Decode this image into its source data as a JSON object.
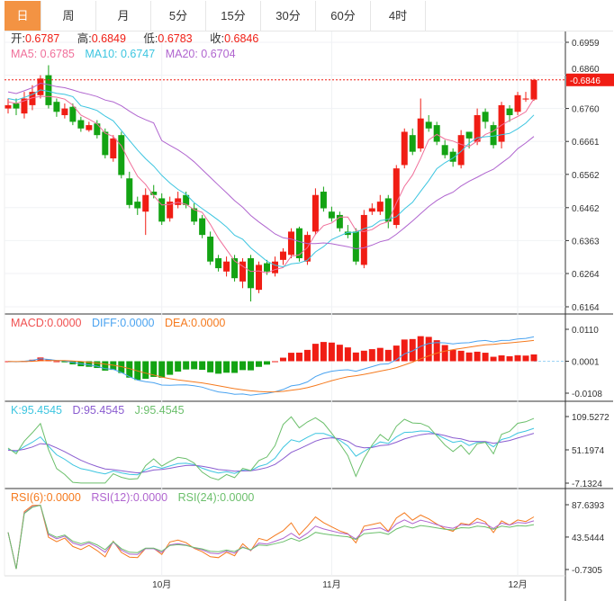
{
  "tabs": [
    "日",
    "周",
    "月",
    "5分",
    "15分",
    "30分",
    "60分",
    "4时"
  ],
  "active_tab": 0,
  "ohlc_legend": {
    "open_label": "开:",
    "open": "0.6787",
    "high_label": "高:",
    "high": "0.6849",
    "low_label": "低:",
    "low": "0.6783",
    "close_label": "收:",
    "close": "0.6846"
  },
  "ma_legend": {
    "ma5": "MA5: 0.6785",
    "ma10": "MA10: 0.6747",
    "ma20": "MA20: 0.6704"
  },
  "macd_legend": {
    "macd": "MACD:0.0000",
    "diff": "DIFF:0.0000",
    "dea": "DEA:0.0000"
  },
  "kdj_legend": {
    "k": "K:95.4545",
    "d": "D:95.4545",
    "j": "J:95.4545"
  },
  "rsi_legend": {
    "rsi6": "RSI(6):0.0000",
    "rsi12": "RSI(12):0.0000",
    "rsi24": "RSI(24):0.0000"
  },
  "colors": {
    "up": "#f01d14",
    "down": "#13a313",
    "ma5": "#f06f9a",
    "ma10": "#3cc5e0",
    "ma20": "#b065cf",
    "diff": "#4aa3f0",
    "dea": "#f57a1e",
    "k": "#3cc5e0",
    "d": "#8a5cd0",
    "j": "#6bbf6b",
    "rsi6": "#f57a1e",
    "rsi12": "#b065cf",
    "rsi24": "#6bbf6b",
    "accent": "#f39343"
  },
  "chart_data": {
    "type": "candlestick",
    "last_price": "0.6846",
    "price_ticks": [
      "0.6959",
      "0.6860",
      "0.6760",
      "0.6661",
      "0.6562",
      "0.6462",
      "0.6363",
      "0.6264",
      "0.6164"
    ],
    "price_range": [
      0.6164,
      0.6959
    ],
    "macd_ticks": [
      "0.0110",
      "0.0001",
      "-0.0108"
    ],
    "kdj_ticks": [
      "109.5272",
      "51.1974",
      "-7.1324"
    ],
    "rsi_ticks": [
      "87.6393",
      "43.5444",
      "-0.7305"
    ],
    "x_labels": [
      {
        "label": "10月",
        "index": 19
      },
      {
        "label": "11月",
        "index": 40
      },
      {
        "label": "12月",
        "index": 63
      }
    ],
    "open": [
      0.676,
      0.6775,
      0.6745,
      0.677,
      0.68,
      0.686,
      0.678,
      0.674,
      0.6765,
      0.6725,
      0.6695,
      0.6715,
      0.669,
      0.661,
      0.668,
      0.655,
      0.648,
      0.645,
      0.651,
      0.649,
      0.643,
      0.647,
      0.65,
      0.646,
      0.643,
      0.6375,
      0.631,
      0.627,
      0.631,
      0.624,
      0.631,
      0.6215,
      0.6295,
      0.6265,
      0.6305,
      0.632,
      0.64,
      0.63,
      0.639,
      0.651,
      0.645,
      0.644,
      0.639,
      0.639,
      0.629,
      0.645,
      0.645,
      0.649,
      0.641,
      0.659,
      0.668,
      0.664,
      0.672,
      0.671,
      0.665,
      0.663,
      0.659,
      0.669,
      0.666,
      0.675,
      0.671,
      0.666,
      0.676,
      0.675,
      0.6787,
      0.6787
    ],
    "close": [
      0.677,
      0.676,
      0.679,
      0.681,
      0.685,
      0.677,
      0.675,
      0.676,
      0.672,
      0.67,
      0.671,
      0.668,
      0.662,
      0.667,
      0.656,
      0.647,
      0.646,
      0.65,
      0.65,
      0.642,
      0.648,
      0.649,
      0.647,
      0.642,
      0.638,
      0.63,
      0.628,
      0.63,
      0.625,
      0.63,
      0.622,
      0.629,
      0.627,
      0.63,
      0.633,
      0.639,
      0.631,
      0.638,
      0.65,
      0.646,
      0.643,
      0.64,
      0.638,
      0.63,
      0.644,
      0.646,
      0.648,
      0.642,
      0.658,
      0.669,
      0.663,
      0.673,
      0.67,
      0.666,
      0.662,
      0.66,
      0.668,
      0.667,
      0.674,
      0.672,
      0.665,
      0.677,
      0.674,
      0.68,
      0.679,
      0.6846
    ],
    "high": [
      0.679,
      0.679,
      0.681,
      0.683,
      0.686,
      0.689,
      0.679,
      0.6775,
      0.6775,
      0.6735,
      0.672,
      0.6725,
      0.67,
      0.668,
      0.669,
      0.657,
      0.6495,
      0.652,
      0.653,
      0.6505,
      0.6495,
      0.651,
      0.651,
      0.6475,
      0.644,
      0.639,
      0.632,
      0.6315,
      0.632,
      0.631,
      0.632,
      0.63,
      0.6305,
      0.6315,
      0.634,
      0.64,
      0.6405,
      0.639,
      0.652,
      0.6525,
      0.6465,
      0.645,
      0.641,
      0.64,
      0.6455,
      0.6475,
      0.65,
      0.65,
      0.659,
      0.67,
      0.67,
      0.679,
      0.674,
      0.672,
      0.6665,
      0.664,
      0.6695,
      0.669,
      0.676,
      0.676,
      0.672,
      0.678,
      0.677,
      0.681,
      0.681,
      0.6849
    ],
    "low": [
      0.6745,
      0.674,
      0.673,
      0.6755,
      0.679,
      0.676,
      0.6735,
      0.673,
      0.671,
      0.669,
      0.669,
      0.667,
      0.661,
      0.66,
      0.655,
      0.646,
      0.644,
      0.638,
      0.649,
      0.641,
      0.642,
      0.646,
      0.646,
      0.641,
      0.637,
      0.629,
      0.627,
      0.6255,
      0.624,
      0.622,
      0.618,
      0.6205,
      0.626,
      0.6255,
      0.629,
      0.631,
      0.63,
      0.629,
      0.638,
      0.645,
      0.642,
      0.639,
      0.637,
      0.629,
      0.628,
      0.644,
      0.644,
      0.64,
      0.64,
      0.658,
      0.662,
      0.663,
      0.669,
      0.665,
      0.661,
      0.6585,
      0.658,
      0.664,
      0.665,
      0.67,
      0.664,
      0.664,
      0.672,
      0.674,
      0.678,
      0.6783
    ]
  }
}
